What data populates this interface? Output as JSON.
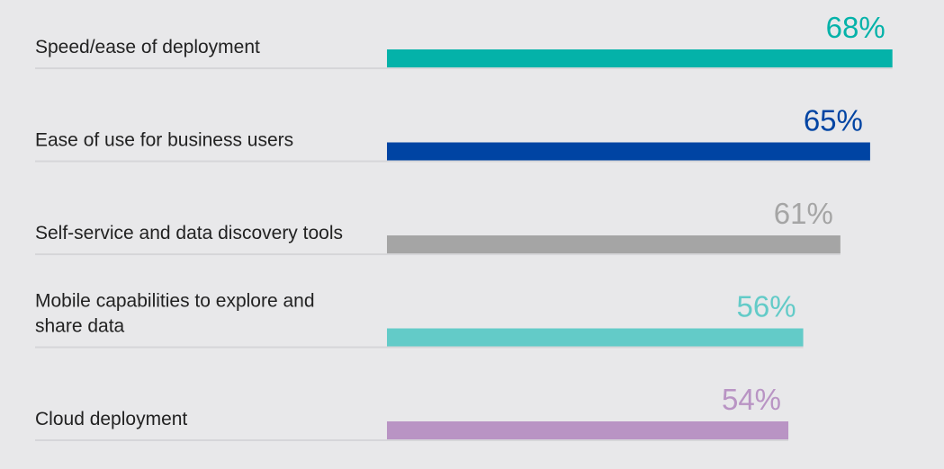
{
  "chart_data": {
    "type": "bar",
    "orientation": "horizontal",
    "categories": [
      [
        "Speed/ease of deployment"
      ],
      [
        "Ease of use for business users"
      ],
      [
        "Self-service and data discovery tools"
      ],
      [
        "Mobile capabilities to explore and",
        "share data"
      ],
      [
        "Cloud deployment"
      ]
    ],
    "values": [
      68,
      65,
      61,
      56,
      54
    ],
    "value_labels": [
      "68%",
      "65%",
      "61%",
      "56%",
      "54%"
    ],
    "colors": [
      "#04b2a9",
      "#0044a3",
      "#a5a5a5",
      "#63cbc8",
      "#b994c4"
    ],
    "xlim": [
      0,
      100
    ],
    "grid": false,
    "legend": "none",
    "title": "",
    "xlabel": "",
    "ylabel": ""
  }
}
